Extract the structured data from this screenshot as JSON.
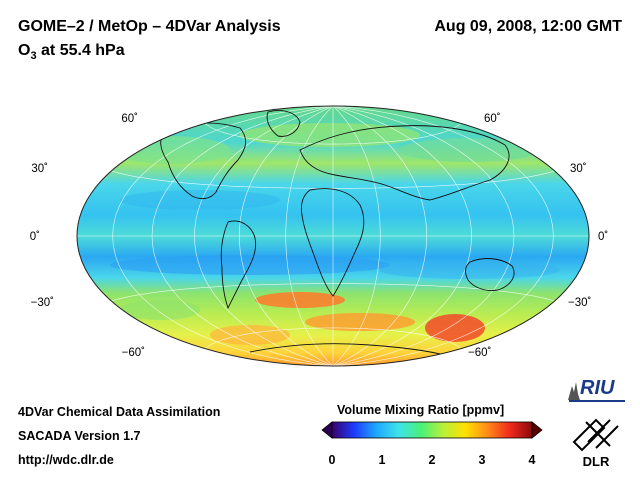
{
  "header": {
    "title": "GOME–2 / MetOp – 4DVar Analysis",
    "species": "O",
    "species_sub": "3",
    "level": " at 55.4 hPa",
    "datetime": "Aug 09, 2008, 12:00 GMT"
  },
  "map": {
    "projection": "Hammer–Aitoff",
    "latitude_labels": {
      "n60": "60˚",
      "n30": "30˚",
      "eq": "0˚",
      "s30": "−30˚",
      "s60": "−60˚"
    },
    "colors": {
      "ocean_fill": "#4ad8ef",
      "high_lat_band": "#7fe38a",
      "mid_band": "#2fb4f0",
      "peak": "#ff5a2a",
      "coast": "#111111",
      "grid": "#ffffff"
    }
  },
  "footer": {
    "line1": "4DVar Chemical Data Assimilation",
    "line2": "SACADA Version 1.7",
    "line3": "http://wdc.dlr.de"
  },
  "colorbar": {
    "title": "Volume Mixing Ratio [ppmv]",
    "ticks": [
      "0",
      "1",
      "2",
      "3",
      "4"
    ],
    "min": 0,
    "max": 4,
    "stops": [
      "#3b006a",
      "#1c3cff",
      "#1ea8ff",
      "#3fe3e8",
      "#48f07a",
      "#b8f03a",
      "#ffe100",
      "#ff8a1a",
      "#f02a1a",
      "#8a0a0a"
    ]
  },
  "logos": {
    "riu": "RIU",
    "dlr": "DLR"
  }
}
